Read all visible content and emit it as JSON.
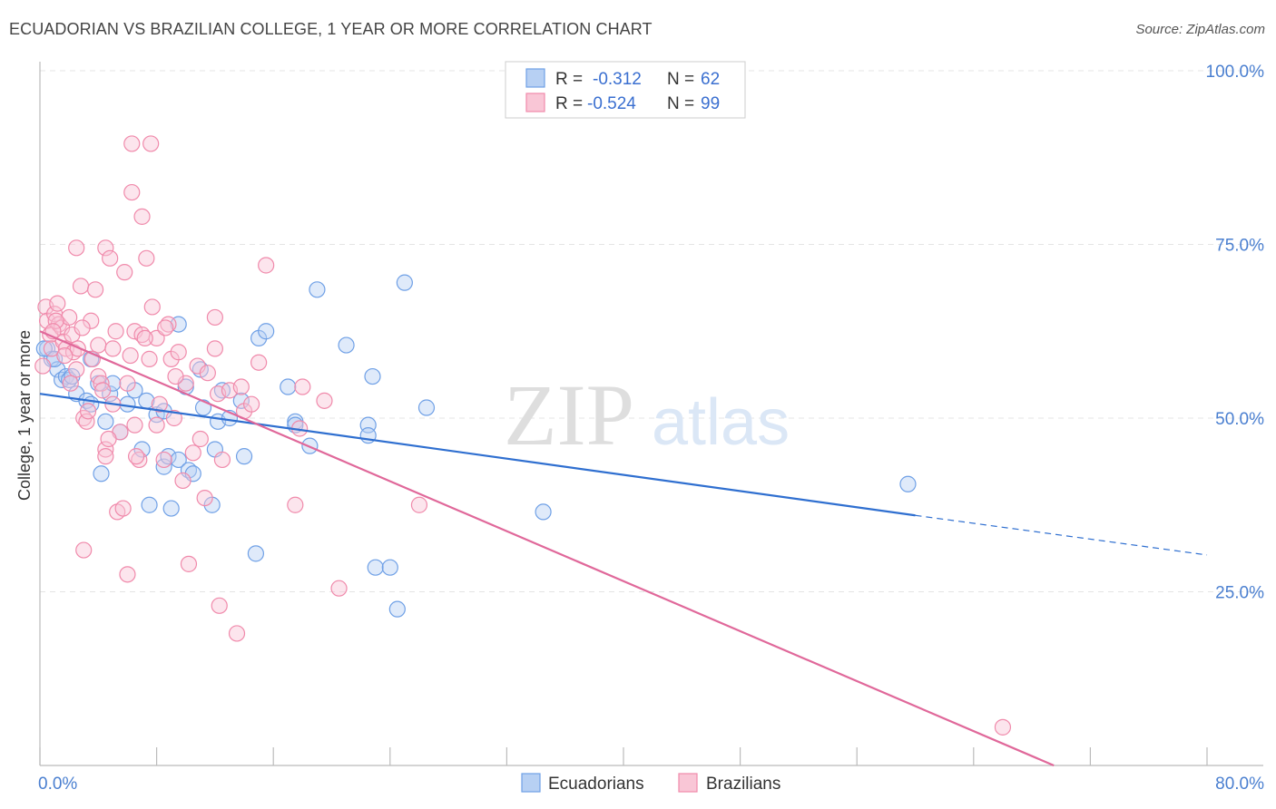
{
  "header": {
    "title": "ECUADORIAN VS BRAZILIAN COLLEGE, 1 YEAR OR MORE CORRELATION CHART",
    "source": "Source: ZipAtlas.com"
  },
  "watermark": {
    "zip": "ZIP",
    "atlas": "atlas"
  },
  "legend": {
    "rows": [
      {
        "r_label": "R =",
        "r_value": "-0.312",
        "n_label": "N =",
        "n_value": "62"
      },
      {
        "r_label": "R =",
        "r_value": "-0.524",
        "n_label": "N =",
        "n_value": "99"
      }
    ]
  },
  "chart_data": {
    "type": "scatter",
    "title": "ECUADORIAN VS BRAZILIAN COLLEGE, 1 YEAR OR MORE CORRELATION CHART",
    "ylabel": "College, 1 year or more",
    "xlabel": "",
    "xlim": [
      0,
      80
    ],
    "ylim": [
      0,
      100
    ],
    "x_tick_labels": [
      "0.0%",
      "80.0%"
    ],
    "y_ticks": [
      25,
      50,
      75,
      100
    ],
    "y_tick_labels": [
      "25.0%",
      "50.0%",
      "75.0%",
      "100.0%"
    ],
    "grid": true,
    "legend_position": "top-center",
    "colors": {
      "ecuadorians": "#6fa0e6",
      "brazilians": "#f08aab",
      "blue_line": "#2f6fd0",
      "pink_line": "#e0689a"
    },
    "series": [
      {
        "name": "Ecuadorians",
        "trend": {
          "x0": 0,
          "y0": 53.5,
          "x1": 60,
          "y1": 36.0,
          "dashed_to_x": 80,
          "dashed_to_y": 30.3
        },
        "points": [
          [
            0.5,
            60
          ],
          [
            0.8,
            58.5
          ],
          [
            1.2,
            57
          ],
          [
            1.5,
            55.5
          ],
          [
            1.8,
            56
          ],
          [
            2,
            55.5
          ],
          [
            2.5,
            53.5
          ],
          [
            3.2,
            52.5
          ],
          [
            3.5,
            52
          ],
          [
            4,
            55
          ],
          [
            4.5,
            49.5
          ],
          [
            4.8,
            53.5
          ],
          [
            5,
            55
          ],
          [
            5.5,
            48
          ],
          [
            6,
            52
          ],
          [
            6.5,
            54
          ],
          [
            7,
            45.5
          ],
          [
            7.3,
            52.5
          ],
          [
            7.5,
            37.5
          ],
          [
            8,
            50.5
          ],
          [
            8.5,
            51
          ],
          [
            8.5,
            43
          ],
          [
            8.8,
            44.5
          ],
          [
            9,
            37
          ],
          [
            9.5,
            44
          ],
          [
            9.5,
            63.5
          ],
          [
            10,
            54.5
          ],
          [
            10.2,
            42.5
          ],
          [
            10.5,
            42
          ],
          [
            11,
            57
          ],
          [
            11.2,
            51.5
          ],
          [
            11.8,
            37.5
          ],
          [
            12,
            45.5
          ],
          [
            12.2,
            49.5
          ],
          [
            12.5,
            54
          ],
          [
            13,
            50
          ],
          [
            13.8,
            52.5
          ],
          [
            14,
            44.5
          ],
          [
            14.8,
            30.5
          ],
          [
            15,
            61.5
          ],
          [
            15.5,
            62.5
          ],
          [
            17,
            54.5
          ],
          [
            17.5,
            49.5
          ],
          [
            17.5,
            49
          ],
          [
            18.5,
            46
          ],
          [
            19,
            68.5
          ],
          [
            21,
            60.5
          ],
          [
            22.5,
            49
          ],
          [
            22.5,
            47.5
          ],
          [
            22.8,
            56
          ],
          [
            23,
            28.5
          ],
          [
            24,
            28.5
          ],
          [
            24.5,
            22.5
          ],
          [
            25,
            69.5
          ],
          [
            26.5,
            51.5
          ],
          [
            34.5,
            36.5
          ],
          [
            59.5,
            40.5
          ],
          [
            2.2,
            56
          ],
          [
            4.2,
            42
          ],
          [
            0.3,
            60
          ],
          [
            1,
            58.5
          ],
          [
            3.5,
            58.5
          ]
        ]
      },
      {
        "name": "Brazilians",
        "trend": {
          "x0": 0,
          "y0": 62.5,
          "x1": 69.5,
          "y1": 0
        },
        "points": [
          [
            0.2,
            57.5
          ],
          [
            0.4,
            66
          ],
          [
            0.5,
            64
          ],
          [
            0.7,
            62
          ],
          [
            0.8,
            60
          ],
          [
            1,
            65
          ],
          [
            1.2,
            66.5
          ],
          [
            1.3,
            63.5
          ],
          [
            1.5,
            63
          ],
          [
            1.6,
            61
          ],
          [
            1.8,
            60
          ],
          [
            2,
            64.5
          ],
          [
            2.2,
            62
          ],
          [
            2.3,
            59.5
          ],
          [
            2.5,
            57
          ],
          [
            2.5,
            74.5
          ],
          [
            2.8,
            69
          ],
          [
            3,
            50
          ],
          [
            3,
            31
          ],
          [
            3.2,
            49.5
          ],
          [
            3.5,
            64
          ],
          [
            3.8,
            68.5
          ],
          [
            4,
            56
          ],
          [
            4,
            60.5
          ],
          [
            4.2,
            55
          ],
          [
            4.5,
            45.5
          ],
          [
            4.5,
            44.5
          ],
          [
            4.5,
            74.5
          ],
          [
            4.8,
            73
          ],
          [
            5,
            60
          ],
          [
            5,
            52
          ],
          [
            5.2,
            62.5
          ],
          [
            5.3,
            36.5
          ],
          [
            5.5,
            48
          ],
          [
            5.8,
            71
          ],
          [
            6,
            55
          ],
          [
            6,
            27.5
          ],
          [
            6.2,
            59
          ],
          [
            6.3,
            82.5
          ],
          [
            6.5,
            62.5
          ],
          [
            6.5,
            49
          ],
          [
            6.8,
            44
          ],
          [
            7,
            62
          ],
          [
            7,
            79
          ],
          [
            7.3,
            73
          ],
          [
            7.5,
            58.5
          ],
          [
            7.6,
            89.5
          ],
          [
            7.7,
            66
          ],
          [
            8,
            61.5
          ],
          [
            8,
            49
          ],
          [
            8.2,
            52
          ],
          [
            8.5,
            44
          ],
          [
            8.8,
            63.5
          ],
          [
            9,
            58.5
          ],
          [
            9.2,
            50
          ],
          [
            9.5,
            59.5
          ],
          [
            9.8,
            41
          ],
          [
            10,
            55
          ],
          [
            10.2,
            29
          ],
          [
            10.5,
            45
          ],
          [
            10.8,
            57.5
          ],
          [
            11,
            47
          ],
          [
            11.5,
            56.5
          ],
          [
            12,
            60
          ],
          [
            12,
            64.5
          ],
          [
            12.2,
            53.5
          ],
          [
            12.3,
            23
          ],
          [
            12.5,
            44
          ],
          [
            13,
            54
          ],
          [
            13.5,
            19
          ],
          [
            13.8,
            54.5
          ],
          [
            14,
            51
          ],
          [
            14.5,
            52
          ],
          [
            15,
            58
          ],
          [
            15.5,
            72
          ],
          [
            17.5,
            37.5
          ],
          [
            17.8,
            48.5
          ],
          [
            18,
            54.5
          ],
          [
            19.5,
            52.5
          ],
          [
            20.5,
            25.5
          ],
          [
            26,
            37.5
          ],
          [
            66,
            5.5
          ],
          [
            6.3,
            89.5
          ],
          [
            1.1,
            64
          ],
          [
            2.6,
            60
          ],
          [
            3.6,
            58.5
          ],
          [
            4.3,
            54
          ],
          [
            5.7,
            37
          ],
          [
            7.2,
            61.5
          ],
          [
            8.6,
            63
          ],
          [
            0.9,
            62.5
          ],
          [
            1.7,
            59
          ],
          [
            2.9,
            63
          ],
          [
            3.3,
            51
          ],
          [
            4.7,
            47
          ],
          [
            6.6,
            44.5
          ],
          [
            9.3,
            56
          ],
          [
            11.3,
            38.5
          ],
          [
            2.1,
            55
          ]
        ]
      }
    ]
  },
  "bottom_legend": {
    "items": [
      "Ecuadorians",
      "Brazilians"
    ]
  }
}
